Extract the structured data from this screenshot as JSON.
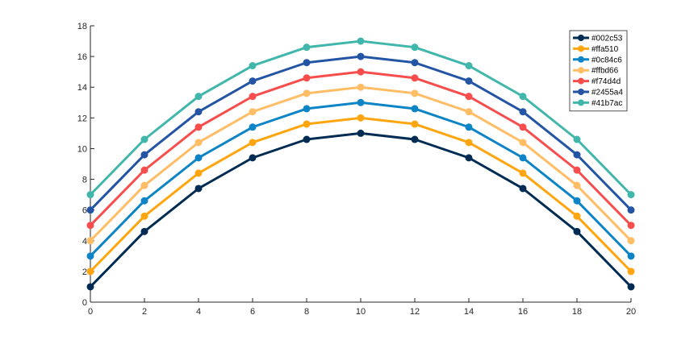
{
  "chart_data": {
    "type": "line",
    "title": "",
    "xlabel": "",
    "ylabel": "",
    "xlim": [
      0,
      20
    ],
    "ylim": [
      0,
      18
    ],
    "x": [
      0,
      2,
      4,
      6,
      8,
      10,
      12,
      14,
      16,
      18,
      20
    ],
    "xticks": [
      "0",
      "2",
      "4",
      "6",
      "8",
      "10",
      "12",
      "14",
      "16",
      "18",
      "20"
    ],
    "yticks": [
      "0",
      "2",
      "4",
      "6",
      "8",
      "10",
      "12",
      "14",
      "16",
      "18"
    ],
    "grid": false,
    "legend_position": "top-right",
    "series": [
      {
        "name": "#002c53",
        "color": "#002c53",
        "values": [
          1,
          4.6,
          7.4,
          9.4,
          10.6,
          11,
          10.6,
          9.4,
          7.4,
          4.6,
          1
        ]
      },
      {
        "name": "#ffa510",
        "color": "#ffa510",
        "values": [
          2,
          5.6,
          8.4,
          10.4,
          11.6,
          12,
          11.6,
          10.4,
          8.4,
          5.6,
          2
        ]
      },
      {
        "name": "#0c84c6",
        "color": "#0c84c6",
        "values": [
          3,
          6.6,
          9.4,
          11.4,
          12.6,
          13,
          12.6,
          11.4,
          9.4,
          6.6,
          3
        ]
      },
      {
        "name": "#ffbd66",
        "color": "#ffbd66",
        "values": [
          4,
          7.6,
          10.4,
          12.4,
          13.6,
          14,
          13.6,
          12.4,
          10.4,
          7.6,
          4
        ]
      },
      {
        "name": "#f74d4d",
        "color": "#f74d4d",
        "values": [
          5,
          8.6,
          11.4,
          13.4,
          14.6,
          15,
          14.6,
          13.4,
          11.4,
          8.6,
          5
        ]
      },
      {
        "name": "#2455a4",
        "color": "#2455a4",
        "values": [
          6,
          9.6,
          12.4,
          14.4,
          15.6,
          16,
          15.6,
          14.4,
          12.4,
          9.6,
          6
        ]
      },
      {
        "name": "#41b7ac",
        "color": "#41b7ac",
        "values": [
          7,
          10.6,
          13.4,
          15.4,
          16.6,
          17,
          16.6,
          15.4,
          13.4,
          10.6,
          7
        ]
      }
    ]
  }
}
